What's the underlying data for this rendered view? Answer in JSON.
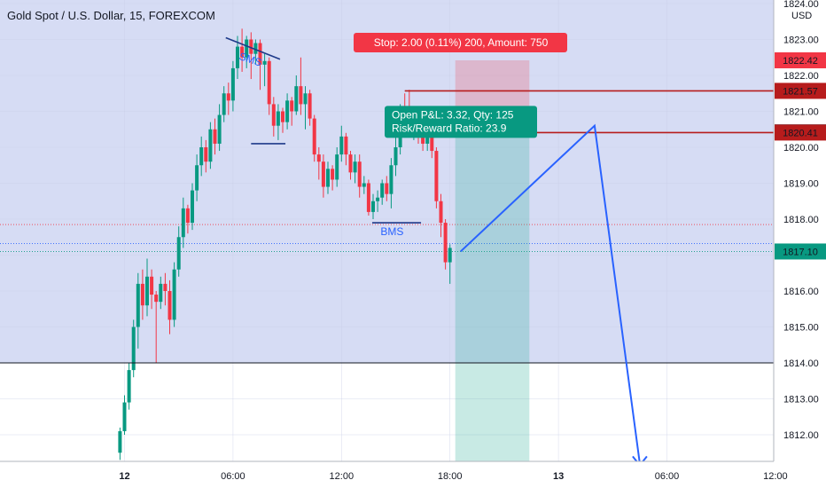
{
  "chart_data": {
    "type": "candlestick",
    "title": "Gold Spot / U.S. Dollar, 15, FOREXCOM",
    "currency": "USD",
    "ylim": [
      1811.2,
      1824.1
    ],
    "x_ticks": [
      {
        "label": "18:00",
        "x": -12
      },
      {
        "label": "12",
        "x": 0,
        "bold": true
      },
      {
        "label": "06:00",
        "x": 6
      },
      {
        "label": "12:00",
        "x": 12
      },
      {
        "label": "18:00",
        "x": 18
      },
      {
        "label": "13",
        "x": 24,
        "bold": true
      },
      {
        "label": "06:00",
        "x": 30
      },
      {
        "label": "12:00",
        "x": 36
      }
    ],
    "y_ticks": [
      1812,
      1813,
      1814,
      1815,
      1816,
      1817,
      1818,
      1819,
      1820,
      1821,
      1822,
      1823,
      1824
    ],
    "y_tick_labels": [
      "1812.00",
      "1813.00",
      "1814.00",
      "1815.00",
      "1816.00",
      "1817.00",
      "1818.00",
      "1819.00",
      "1820.00",
      "1821.00",
      "1822.00",
      "1823.00",
      "1824.00"
    ],
    "price_labels": [
      {
        "text": "1822.42",
        "value": 1822.42,
        "color": "#f23645"
      },
      {
        "text": "1821.57",
        "value": 1821.57,
        "color": "#b71c1c"
      },
      {
        "text": "1820.42",
        "value": 1820.42,
        "color": "#787b86"
      },
      {
        "text": "1820.41",
        "value": 1820.41,
        "color": "#b71c1c"
      },
      {
        "text": "1817.10",
        "value": 1817.1,
        "color": "#089981"
      }
    ],
    "up_color": "#089981",
    "down_color": "#f23645",
    "background_zone": {
      "from": 1814.0,
      "to": 1824.1,
      "color": "#d6dcf4"
    },
    "candles": [
      [
        -0.25,
        1811.5,
        1812.1,
        1811.3,
        1812.2
      ],
      [
        0.0,
        1812.1,
        1812.9,
        1812.0,
        1813.1
      ],
      [
        0.25,
        1812.9,
        1813.8,
        1812.7,
        1814.0
      ],
      [
        0.5,
        1813.8,
        1815.0,
        1813.6,
        1815.2
      ],
      [
        0.75,
        1815.0,
        1816.2,
        1814.4,
        1816.5
      ],
      [
        1.0,
        1816.2,
        1815.6,
        1815.2,
        1816.6
      ],
      [
        1.25,
        1815.6,
        1816.4,
        1815.3,
        1816.9
      ],
      [
        1.5,
        1816.4,
        1815.9,
        1815.5,
        1816.6
      ],
      [
        1.75,
        1815.9,
        1815.7,
        1814.0,
        1816.0
      ],
      [
        2.0,
        1815.7,
        1816.2,
        1815.5,
        1816.4
      ],
      [
        2.25,
        1816.2,
        1816.0,
        1815.6,
        1816.5
      ],
      [
        2.5,
        1816.0,
        1815.2,
        1814.8,
        1816.3
      ],
      [
        2.75,
        1815.2,
        1816.6,
        1815.0,
        1816.8
      ],
      [
        3.0,
        1816.6,
        1817.5,
        1816.4,
        1817.8
      ],
      [
        3.25,
        1817.5,
        1818.3,
        1817.2,
        1818.6
      ],
      [
        3.5,
        1818.3,
        1817.9,
        1817.6,
        1818.4
      ],
      [
        3.75,
        1817.9,
        1818.8,
        1817.7,
        1819.0
      ],
      [
        4.0,
        1818.8,
        1819.5,
        1818.5,
        1819.8
      ],
      [
        4.25,
        1819.5,
        1820.0,
        1819.2,
        1820.3
      ],
      [
        4.5,
        1820.0,
        1819.6,
        1819.3,
        1820.2
      ],
      [
        4.75,
        1819.6,
        1820.5,
        1819.4,
        1820.7
      ],
      [
        5.0,
        1820.5,
        1820.1,
        1819.8,
        1820.8
      ],
      [
        5.25,
        1820.1,
        1820.9,
        1819.9,
        1821.2
      ],
      [
        5.5,
        1820.9,
        1821.5,
        1820.7,
        1821.7
      ],
      [
        5.75,
        1821.5,
        1821.3,
        1820.9,
        1821.8
      ],
      [
        6.0,
        1821.3,
        1822.2,
        1821.0,
        1822.4
      ],
      [
        6.25,
        1822.2,
        1822.8,
        1821.9,
        1823.1
      ],
      [
        6.5,
        1822.8,
        1822.5,
        1822.1,
        1823.3
      ],
      [
        6.75,
        1822.5,
        1823.0,
        1822.2,
        1823.1
      ],
      [
        7.0,
        1823.0,
        1822.6,
        1821.9,
        1823.2
      ],
      [
        7.25,
        1822.6,
        1822.9,
        1822.3,
        1823.0
      ],
      [
        7.5,
        1822.9,
        1822.3,
        1821.6,
        1823.0
      ],
      [
        7.75,
        1822.3,
        1822.4,
        1821.7,
        1822.6
      ],
      [
        8.0,
        1822.4,
        1821.2,
        1820.9,
        1822.5
      ],
      [
        8.25,
        1821.2,
        1820.6,
        1820.3,
        1821.4
      ],
      [
        8.5,
        1820.6,
        1821.0,
        1820.2,
        1821.2
      ],
      [
        8.75,
        1821.0,
        1820.7,
        1820.4,
        1821.1
      ],
      [
        9.0,
        1820.7,
        1821.3,
        1820.5,
        1821.5
      ],
      [
        9.25,
        1821.3,
        1821.0,
        1820.6,
        1821.4
      ],
      [
        9.5,
        1821.0,
        1821.7,
        1820.9,
        1822.0
      ],
      [
        9.75,
        1821.7,
        1821.2,
        1820.9,
        1822.5
      ],
      [
        10.0,
        1821.2,
        1821.5,
        1820.5,
        1821.7
      ],
      [
        10.25,
        1821.5,
        1820.8,
        1820.6,
        1821.6
      ],
      [
        10.5,
        1820.8,
        1819.8,
        1819.6,
        1820.9
      ],
      [
        10.75,
        1819.8,
        1819.6,
        1819.1,
        1820.0
      ],
      [
        11.0,
        1819.6,
        1818.9,
        1818.6,
        1819.8
      ],
      [
        11.25,
        1818.9,
        1819.4,
        1818.7,
        1819.6
      ],
      [
        11.5,
        1819.4,
        1819.1,
        1818.8,
        1819.5
      ],
      [
        11.75,
        1819.1,
        1819.8,
        1818.9,
        1820.0
      ],
      [
        12.0,
        1819.8,
        1820.3,
        1819.6,
        1820.6
      ],
      [
        12.25,
        1820.3,
        1819.8,
        1819.5,
        1820.4
      ],
      [
        12.5,
        1819.8,
        1819.3,
        1819.1,
        1819.9
      ],
      [
        12.75,
        1819.3,
        1819.6,
        1819.0,
        1819.8
      ],
      [
        13.0,
        1819.6,
        1818.9,
        1818.6,
        1819.8
      ],
      [
        13.25,
        1818.9,
        1819.0,
        1818.7,
        1819.2
      ],
      [
        13.5,
        1819.0,
        1818.2,
        1818.1,
        1819.1
      ],
      [
        13.75,
        1818.2,
        1818.5,
        1818.0,
        1818.7
      ],
      [
        14.0,
        1818.5,
        1818.6,
        1818.2,
        1818.8
      ],
      [
        14.25,
        1818.6,
        1819.0,
        1818.4,
        1819.1
      ],
      [
        14.5,
        1819.0,
        1818.7,
        1818.5,
        1819.2
      ],
      [
        14.75,
        1818.7,
        1819.5,
        1818.3,
        1819.7
      ],
      [
        15.0,
        1819.5,
        1820.0,
        1819.2,
        1820.3
      ],
      [
        15.25,
        1820.0,
        1821.0,
        1819.8,
        1821.2
      ],
      [
        15.5,
        1821.0,
        1820.8,
        1820.4,
        1821.5
      ],
      [
        15.75,
        1820.8,
        1820.5,
        1820.3,
        1821.6
      ],
      [
        16.0,
        1820.5,
        1820.7,
        1820.2,
        1821.0
      ],
      [
        16.25,
        1820.7,
        1820.4,
        1820.1,
        1820.9
      ],
      [
        16.5,
        1820.4,
        1820.1,
        1819.9,
        1820.6
      ],
      [
        16.75,
        1820.1,
        1820.6,
        1819.9,
        1820.7
      ],
      [
        17.0,
        1820.6,
        1819.9,
        1819.7,
        1820.7
      ],
      [
        17.25,
        1819.9,
        1818.5,
        1818.3,
        1820.0
      ],
      [
        17.5,
        1818.5,
        1817.9,
        1817.5,
        1818.7
      ],
      [
        17.75,
        1817.9,
        1816.8,
        1816.6,
        1818.0
      ],
      [
        18.0,
        1816.8,
        1817.2,
        1816.2,
        1817.3
      ]
    ],
    "annotations": {
      "sms_label": "SMS",
      "bms_label": "BMS",
      "stop_label": "Stop: 2.00 (0.11%) 200, Amount: 750",
      "pnl_line1": "Open P&L: 3.32, Qty: 125",
      "pnl_line2": "Risk/Reward Ratio: 23.9"
    },
    "horizontal_lines": [
      {
        "value": 1821.57,
        "from_x": 15.5,
        "color": "#b71c1c"
      },
      {
        "value": 1820.41,
        "from_x": 17.0,
        "color": "#b71c1c"
      },
      {
        "value": 1814.0,
        "from_x": -13,
        "color": "#131722"
      }
    ],
    "position": {
      "entry": 1820.41,
      "stop": 1822.42,
      "target": 1811.2,
      "x_start": 18.0,
      "x_end": 22.0
    },
    "projection": [
      {
        "x": 18.0,
        "y": 1817.1
      },
      {
        "x": 26.0,
        "y": 1820.6
      },
      {
        "x": 28.5,
        "y": 1811.2
      }
    ]
  }
}
